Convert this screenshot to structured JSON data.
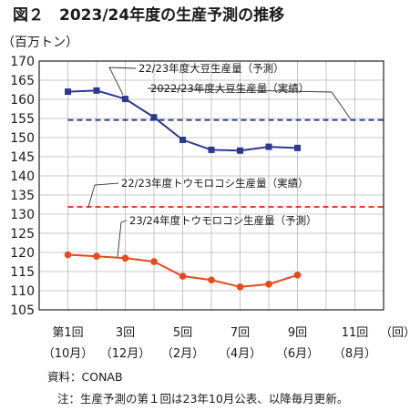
{
  "chart_data": {
    "type": "line",
    "title": "図２　2023/24年度の生産予測の推移",
    "ylabel": "（百万トン）",
    "ylim": [
      105,
      170
    ],
    "yticks": [
      105,
      110,
      115,
      120,
      125,
      130,
      135,
      140,
      145,
      150,
      155,
      160,
      165,
      170
    ],
    "x_range": [
      0,
      12
    ],
    "xticks": [
      {
        "x": 1,
        "top": "第1回",
        "bottom": "（10月）"
      },
      {
        "x": 3,
        "top": "3回",
        "bottom": "（12月）"
      },
      {
        "x": 5,
        "top": "5回",
        "bottom": "（2月）"
      },
      {
        "x": 7,
        "top": "7回",
        "bottom": "（4月）"
      },
      {
        "x": 9,
        "top": "9回",
        "bottom": "（6月）"
      },
      {
        "x": 11,
        "top": "11回",
        "bottom": "（8月）"
      }
    ],
    "x_unit": "（回）",
    "grid": true,
    "series": [
      {
        "name": "22/23年度大豆生産量（予測）",
        "kind": "line-square",
        "color": "#2b3990",
        "x": [
          1,
          2,
          3,
          4,
          5,
          6,
          7,
          8,
          9
        ],
        "y": [
          162,
          162.3,
          160.1,
          155.3,
          149.4,
          146.8,
          146.6,
          147.6,
          147.3
        ]
      },
      {
        "name": "2022/23年度大豆生産量（実績）",
        "kind": "dashed",
        "color": "#2b3990",
        "x": [
          1,
          12
        ],
        "y": [
          154.6,
          154.6
        ]
      },
      {
        "name": "22/23年度トウモロコシ生産量（実績）",
        "kind": "dashed",
        "color": "#e8211b",
        "x": [
          1,
          12
        ],
        "y": [
          131.9,
          131.9
        ]
      },
      {
        "name": "23/24年度トウモロコシ生産量（予測）",
        "kind": "line-circle",
        "color": "#e8481a",
        "x": [
          1,
          2,
          3,
          4,
          5,
          6,
          7,
          8,
          9
        ],
        "y": [
          119.4,
          119,
          118.5,
          117.6,
          113.8,
          112.8,
          111,
          111.7,
          114.1
        ]
      }
    ]
  },
  "notes": {
    "source": "資料：CONAB",
    "note": "注：生産予測の第１回は23年10月公表、以降毎月更新。"
  }
}
